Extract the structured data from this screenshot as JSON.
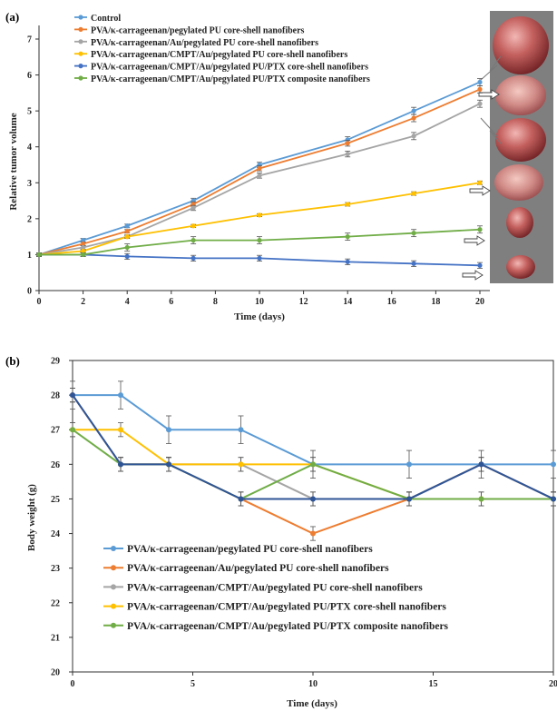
{
  "chart_data": [
    {
      "type": "line",
      "panel_label": "(a)",
      "xlabel": "Time (days)",
      "ylabel": "Relative tumor volume",
      "xlim": [
        0,
        20
      ],
      "ylim": [
        0,
        7
      ],
      "xticks": [
        0,
        2,
        4,
        6,
        8,
        10,
        12,
        14,
        16,
        18,
        20
      ],
      "yticks": [
        0,
        1,
        2,
        3,
        4,
        5,
        6,
        7
      ],
      "legend_position": "top-left",
      "grid": false,
      "side_images": "tumor photographs",
      "series": [
        {
          "name": "Control",
          "color": "#5b9bd5",
          "x": [
            0,
            2,
            4,
            7,
            10,
            14,
            17,
            20
          ],
          "y": [
            1,
            1.4,
            1.8,
            2.5,
            3.5,
            4.2,
            5.0,
            5.8
          ],
          "err": [
            0.05,
            0.05,
            0.05,
            0.07,
            0.07,
            0.08,
            0.1,
            0.1
          ]
        },
        {
          "name": "PVA/κ-carrageenan/pegylated PU core-shell nanofibers",
          "color": "#ed7d31",
          "x": [
            0,
            2,
            4,
            7,
            10,
            14,
            17,
            20
          ],
          "y": [
            1,
            1.3,
            1.65,
            2.4,
            3.4,
            4.1,
            4.8,
            5.6
          ],
          "err": [
            0.05,
            0.05,
            0.05,
            0.07,
            0.07,
            0.08,
            0.1,
            0.1
          ]
        },
        {
          "name": "PVA/κ-carrageenan/Au/pegylated PU core-shell nanofibers",
          "color": "#a5a5a5",
          "x": [
            0,
            2,
            4,
            7,
            10,
            14,
            17,
            20
          ],
          "y": [
            1,
            1.2,
            1.5,
            2.3,
            3.2,
            3.8,
            4.3,
            5.2
          ],
          "err": [
            0.05,
            0.05,
            0.05,
            0.07,
            0.07,
            0.08,
            0.1,
            0.1
          ]
        },
        {
          "name": "PVA/κ-carrageenan/CMPT/Au/pegylated PU core-shell nanofibers",
          "color": "#ffc000",
          "x": [
            0,
            2,
            4,
            7,
            10,
            14,
            17,
            20
          ],
          "y": [
            1,
            1.1,
            1.5,
            1.8,
            2.1,
            2.4,
            2.7,
            3.0
          ],
          "err": [
            0.03,
            0.03,
            0.03,
            0.04,
            0.04,
            0.05,
            0.05,
            0.05
          ]
        },
        {
          "name": "PVA/κ-carrageenan/CMPT/Au/pegylated PU/PTX core-shell nanofibers",
          "color": "#4472c4",
          "x": [
            0,
            2,
            4,
            7,
            10,
            14,
            17,
            20
          ],
          "y": [
            1,
            1.0,
            0.95,
            0.9,
            0.9,
            0.8,
            0.75,
            0.7
          ],
          "err": [
            0.05,
            0.05,
            0.08,
            0.08,
            0.08,
            0.08,
            0.08,
            0.08
          ]
        },
        {
          "name": "PVA/κ-carrageenan/CMPT/Au/pegylated PU/PTX composite nanofibers",
          "color": "#70ad47",
          "x": [
            0,
            2,
            4,
            7,
            10,
            14,
            17,
            20
          ],
          "y": [
            1,
            1.0,
            1.2,
            1.4,
            1.4,
            1.5,
            1.6,
            1.7
          ],
          "err": [
            0.05,
            0.05,
            0.1,
            0.1,
            0.1,
            0.1,
            0.1,
            0.1
          ]
        }
      ]
    },
    {
      "type": "line",
      "panel_label": "(b)",
      "xlabel": "Time (days)",
      "ylabel": "Body weight (g)",
      "xlim": [
        0,
        20
      ],
      "ylim": [
        20,
        29
      ],
      "xticks": [
        0,
        5,
        10,
        15,
        20
      ],
      "yticks": [
        20,
        21,
        22,
        23,
        24,
        25,
        26,
        27,
        28,
        29
      ],
      "legend_position": "bottom-left",
      "grid": false,
      "series": [
        {
          "name": "PVA/κ-carrageenan/pegylated PU core-shell nanofibers",
          "color": "#5b9bd5",
          "x": [
            0,
            2,
            4,
            7,
            10,
            14,
            17,
            20
          ],
          "y": [
            28,
            28,
            27,
            27,
            26,
            26,
            26,
            26
          ],
          "err": [
            0.4,
            0.4,
            0.4,
            0.4,
            0.4,
            0.4,
            0.4,
            0.4
          ]
        },
        {
          "name": "PVA/κ-carrageenan/Au/pegylated PU core-shell nanofibers",
          "color": "#ed7d31",
          "x": [
            0,
            2,
            4,
            7,
            10,
            14,
            17,
            20
          ],
          "y": [
            28,
            26,
            26,
            25,
            24,
            25,
            26,
            25
          ],
          "err": [
            0.2,
            0.2,
            0.2,
            0.2,
            0.2,
            0.2,
            0.2,
            0.2
          ]
        },
        {
          "name": "PVA/κ-carrageenan/CMPT/Au/pegylated PU core-shell nanofibers",
          "color": "#a5a5a5",
          "x": [
            0,
            2,
            4,
            7,
            10,
            14,
            17,
            20
          ],
          "y": [
            28,
            26,
            26,
            26,
            25,
            25,
            26,
            25
          ],
          "err": [
            0.2,
            0.2,
            0.2,
            0.2,
            0.2,
            0.2,
            0.2,
            0.2
          ]
        },
        {
          "name": "PVA/κ-carrageenan/CMPT/Au/pegylated PU/PTX core-shell nanofibers",
          "color": "#ffc000",
          "x": [
            0,
            2,
            4,
            7,
            10,
            14,
            17,
            20
          ],
          "y": [
            27,
            27,
            26,
            26,
            26,
            25,
            25,
            25
          ],
          "err": [
            0.2,
            0.2,
            0.2,
            0.2,
            0.2,
            0.2,
            0.2,
            0.2
          ]
        },
        {
          "name": "PVA/κ-carrageenan/CMPT/Au/pegylated PU/PTX composite nanofibers",
          "color": "#70ad47",
          "x": [
            0,
            2,
            4,
            7,
            10,
            14,
            17,
            20
          ],
          "y": [
            27,
            26,
            26,
            25,
            26,
            25,
            25,
            25
          ],
          "err": [
            0.2,
            0.2,
            0.2,
            0.2,
            0.2,
            0.2,
            0.2,
            0.2
          ]
        },
        {
          "name": "",
          "color": "#2f5597",
          "x": [
            0,
            2,
            4,
            7,
            10,
            14,
            17,
            20
          ],
          "y": [
            28,
            26,
            26,
            25,
            25,
            25,
            26,
            25
          ],
          "err": [
            0.2,
            0.2,
            0.2,
            0.2,
            0.2,
            0.2,
            0.2,
            0.2
          ]
        }
      ]
    }
  ]
}
